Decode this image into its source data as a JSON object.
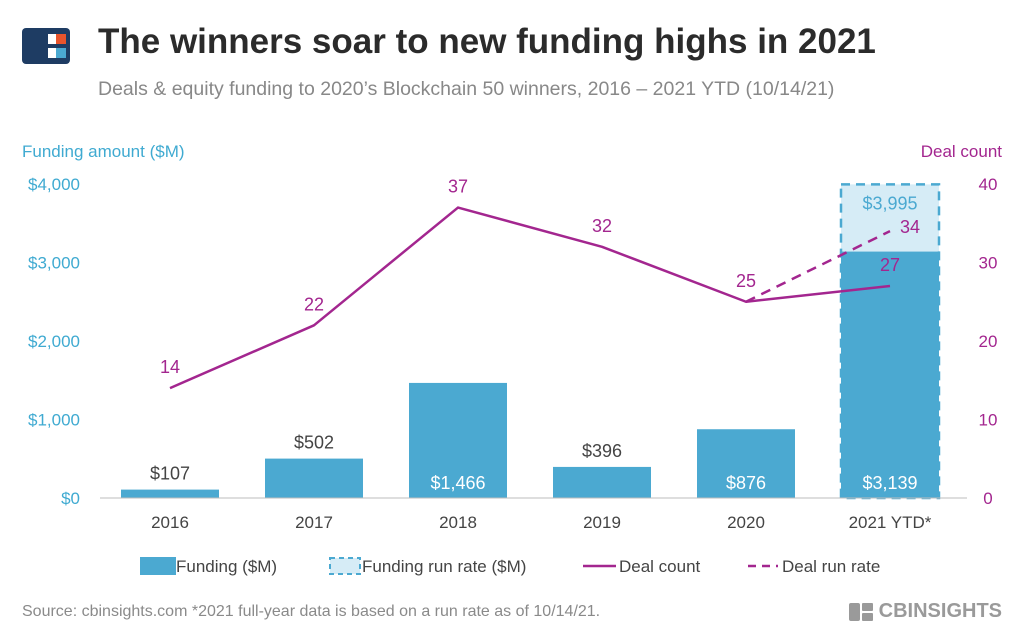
{
  "header": {
    "title": "The winners soar to new funding highs in 2021",
    "subtitle": "Deals & equity funding to 2020’s Blockchain 50 winners, 2016 – 2021 YTD (10/14/21)"
  },
  "footer": {
    "source": "Source: cbinsights.com  *2021 full-year data is based on a run rate as of 10/14/21.",
    "brand": "CBINSIGHTS"
  },
  "colors": {
    "bar": "#4ba9d1",
    "run_rate_fill": "#d6ecf6",
    "line": "#a3268f",
    "left_axis": "#3faad1",
    "right_axis": "#a3268f",
    "text": "#444444"
  },
  "chart_data": {
    "type": "bar",
    "categories": [
      "2016",
      "2017",
      "2018",
      "2019",
      "2020",
      "2021 YTD*"
    ],
    "y_left_label": "Funding amount ($M)",
    "y_right_label": "Deal count",
    "ylim_left": [
      0,
      4000
    ],
    "ylim_right": [
      0,
      40
    ],
    "y_left_ticks": [
      "$0",
      "$1,000",
      "$2,000",
      "$3,000",
      "$4,000"
    ],
    "y_right_ticks": [
      "0",
      "10",
      "20",
      "30",
      "40"
    ],
    "grid": false,
    "legend_position": "bottom",
    "series": [
      {
        "name": "Funding ($M)",
        "kind": "bar",
        "values": [
          107,
          502,
          1466,
          396,
          876,
          3139
        ],
        "labels": [
          "$107",
          "$502",
          "$1,466",
          "$396",
          "$876",
          "$3,139"
        ]
      },
      {
        "name": "Funding run rate ($M)",
        "kind": "bar-dashed",
        "values": [
          null,
          null,
          null,
          null,
          null,
          3995
        ],
        "labels": [
          null,
          null,
          null,
          null,
          null,
          "$3,995"
        ]
      },
      {
        "name": "Deal count",
        "kind": "line",
        "values": [
          14,
          22,
          37,
          32,
          25,
          27
        ],
        "labels": [
          "14",
          "22",
          "37",
          "32",
          "25",
          "27"
        ]
      },
      {
        "name": "Deal run rate",
        "kind": "line-dashed",
        "values": [
          null,
          null,
          null,
          null,
          25,
          34
        ],
        "labels": [
          null,
          null,
          null,
          null,
          null,
          "34"
        ]
      }
    ]
  }
}
